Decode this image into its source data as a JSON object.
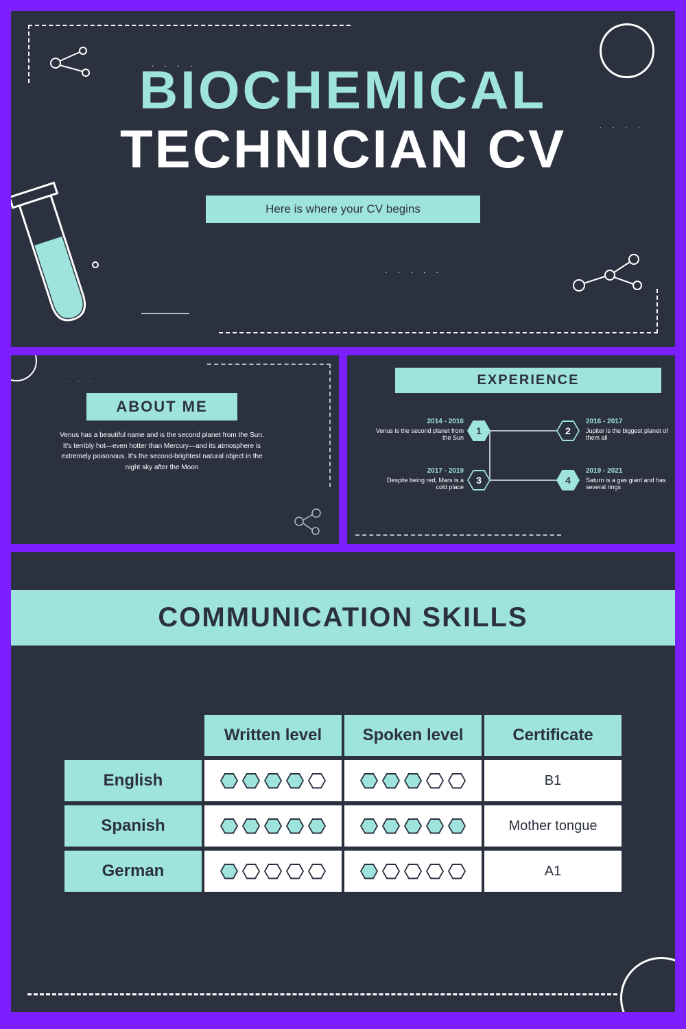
{
  "colors": {
    "frame": "#7c1fff",
    "slide_bg": "#2c3140",
    "accent": "#9ee4dd",
    "white": "#ffffff",
    "dash_muted": "#b5bec9"
  },
  "slide1": {
    "title_line1": "BIOCHEMICAL",
    "title_line2": "TECHNICIAN CV",
    "subtitle": "Here is where your CV begins"
  },
  "about": {
    "label": "ABOUT ME",
    "text": "Venus has a beautiful name and is the second planet from the Sun. It's terribly hot—even hotter than Mercury—and its atmosphere is extremely poisonous. It's the second-brightest natural object in the night sky after the Moon"
  },
  "experience": {
    "label": "EXPERIENCE",
    "items": [
      {
        "n": "1",
        "years": "2014 - 2016",
        "text": "Venus is the second planet from the Sun"
      },
      {
        "n": "2",
        "years": "2016 - 2017",
        "text": "Jupiter is the biggest planet of them all"
      },
      {
        "n": "3",
        "years": "2017 - 2019",
        "text": "Despite being red, Mars is a cold place"
      },
      {
        "n": "4",
        "years": "2019 - 2021",
        "text": "Saturn is a gas giant and has several rings"
      }
    ]
  },
  "skills": {
    "label": "COMMUNICATION SKILLS",
    "columns": [
      "Written level",
      "Spoken level",
      "Certificate"
    ],
    "max_level": 5,
    "rows": [
      {
        "lang": "English",
        "written": 4,
        "spoken": 3,
        "cert": "B1"
      },
      {
        "lang": "Spanish",
        "written": 5,
        "spoken": 5,
        "cert": "Mother tongue"
      },
      {
        "lang": "German",
        "written": 1,
        "spoken": 1,
        "cert": "A1"
      }
    ]
  }
}
